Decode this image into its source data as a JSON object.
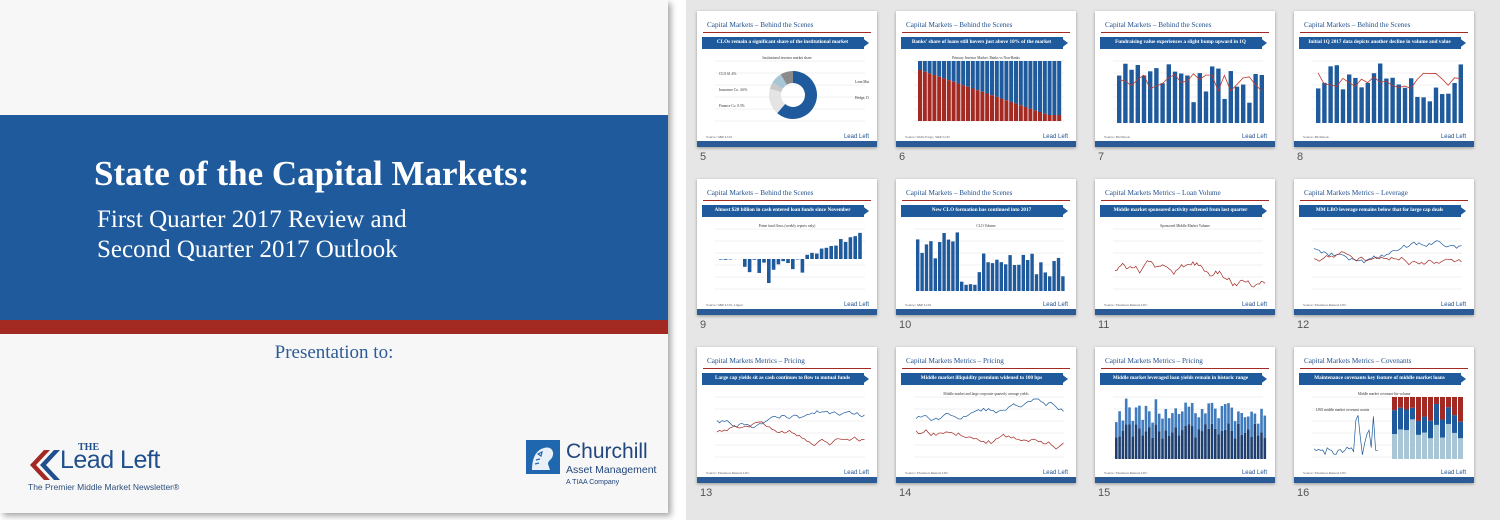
{
  "cover": {
    "title": "State of the Capital Markets:",
    "subtitle_line1": "First Quarter 2017 Review and",
    "subtitle_line2": "Second Quarter 2017 Outlook",
    "presented_to": "Presentation to:",
    "leadleft": {
      "the": "THE",
      "name": "Lead Left",
      "tagline": "The Premier Middle Market Newsletter®"
    },
    "churchill": {
      "name": "Churchill",
      "sub": "Asset Management",
      "tag": "A TIAA Company"
    }
  },
  "thumb_logo": "Lead Left",
  "slides": [
    {
      "number": "5",
      "header": "Capital Markets – Behind the Scenes",
      "banner": "CLOs remain a significant share of the institutional market",
      "chart": "donut",
      "source": "Source: S&P LCD",
      "labels": [
        "Institutional investor market share",
        "CLO 61.4%",
        "Loan Mutual Funds 17.7%",
        "Insurance Co. 4.6%",
        "Hedge, Distressed & High Yield Funds 7.7%",
        "Finance Co. 0.5%"
      ]
    },
    {
      "number": "6",
      "header": "Capital Markets – Behind the Scenes",
      "banner": "Banks' share of loans still hovers just above 10% of the market",
      "chart": "stack",
      "source": "Source: Wells Fargo, S&P LCD",
      "labels": [
        "Primary Investor Market: Banks vs Non-Banks"
      ]
    },
    {
      "number": "7",
      "header": "Capital Markets – Behind the Scenes",
      "banner": "Fundraising value experiences a slight bump upward in 1Q",
      "chart": "barline",
      "source": "Source: Pitchbook",
      "labels": []
    },
    {
      "number": "8",
      "header": "Capital Markets – Behind the Scenes",
      "banner": "Initial 1Q 2017 data depicts another decline in volume and value",
      "chart": "barline",
      "source": "Source: Pitchbook",
      "labels": []
    },
    {
      "number": "9",
      "header": "Capital Markets – Behind the Scenes",
      "banner": "Almost $20 billion in cash entered loan funds since November",
      "chart": "flows",
      "source": "Source: S&P LCD, Lipper",
      "labels": [
        "Prime fund flows (weekly reports only)"
      ]
    },
    {
      "number": "10",
      "header": "Capital Markets – Behind the Scenes",
      "banner": "New CLO formation has continued into 2017",
      "chart": "bars",
      "source": "Source: S&P LCD",
      "labels": [
        "CLO Volume"
      ]
    },
    {
      "number": "11",
      "header": "Capital Markets Metrics – Loan Volume",
      "banner": "Middle market sponsored activity softened from last quarter",
      "chart": "line",
      "source": "Source: Thomson Reuters LPC",
      "labels": [
        "Sponsored Middle Market Volume"
      ]
    },
    {
      "number": "12",
      "header": "Capital Markets Metrics – Leverage",
      "banner": "MM LBO leverage remains below that for large cap deals",
      "chart": "twolines",
      "source": "Source: Thomson Reuters LPC",
      "labels": []
    },
    {
      "number": "13",
      "header": "Capital Markets Metrics – Pricing",
      "banner": "Large cap yields sit as cash continues to flow to mutual funds",
      "chart": "twolines2",
      "source": "Source: Thomson Reuters LPC",
      "labels": []
    },
    {
      "number": "14",
      "header": "Capital Markets Metrics – Pricing",
      "banner": "Middle market illiquidity premium widened to 100 bps",
      "chart": "twolines3",
      "source": "Source: Thomson Reuters LPC",
      "labels": [
        "Middle market and large corporate quarterly average yields"
      ]
    },
    {
      "number": "15",
      "header": "Capital Markets Metrics – Pricing",
      "banner": "Middle market leveraged loan yields remain in historic range",
      "chart": "stackbars",
      "source": "Source: Thomson Reuters LPC",
      "labels": []
    },
    {
      "number": "16",
      "header": "Capital Markets Metrics – Covenants",
      "banner": "Maintenance covenants key feature of middle market loans",
      "chart": "covenants",
      "source": "Source: Thomson Reuters LPC",
      "labels": [
        "Middle market covenant-lite volume",
        "LBO middle market covenant counts"
      ]
    }
  ]
}
